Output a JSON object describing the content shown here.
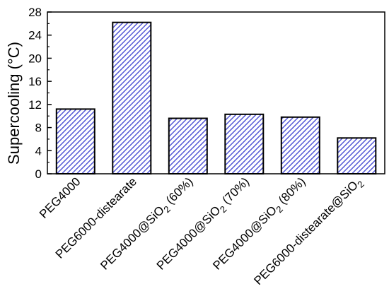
{
  "chart_data": {
    "type": "bar",
    "categories": [
      "PEG4000",
      "PEG6000-distearate",
      "PEG4000@SiO2 (60%)",
      "PEG4000@SiO2 (70%)",
      "PEG4000@SiO2 (80%)",
      "PEG6000-distearate@SiO2"
    ],
    "category_parts": [
      {
        "main": "PEG4000",
        "sub": "",
        "rest": ""
      },
      {
        "main": "PEG6000-distearate",
        "sub": "",
        "rest": ""
      },
      {
        "main": "PEG4000@SiO",
        "sub": "2",
        "rest": " (60%)"
      },
      {
        "main": "PEG4000@SiO",
        "sub": "2",
        "rest": " (70%)"
      },
      {
        "main": "PEG4000@SiO",
        "sub": "2",
        "rest": " (80%)"
      },
      {
        "main": "PEG6000-distearate@SiO",
        "sub": "2",
        "rest": ""
      }
    ],
    "values": [
      11.2,
      26.2,
      9.6,
      10.3,
      9.8,
      6.2
    ],
    "title": "",
    "xlabel": "",
    "ylabel": "Supercooling (°C)",
    "ylim": [
      0,
      28
    ],
    "yticks": [
      0,
      4,
      8,
      12,
      16,
      20,
      24,
      28
    ],
    "grid": false,
    "bar_fill": "#3b3fd0",
    "bar_hatch": "diagonal-lines"
  }
}
